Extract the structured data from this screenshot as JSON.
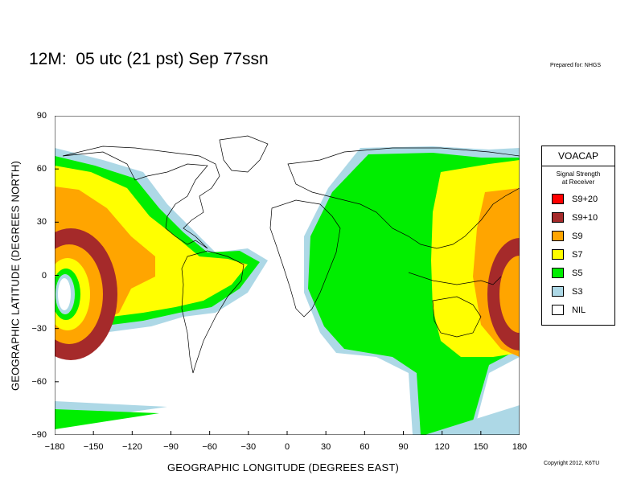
{
  "title": "12M:  05 utc (21 pst) Sep 77ssn",
  "prepared": "Prepared for: NHGS",
  "copyright": "Copyright 2012, K6TU",
  "axes": {
    "xlabel": "GEOGRAPHIC LONGITUDE (DEGREES EAST)",
    "ylabel": "GEOGRAPHIC LATITUDE (DEGREES NORTH)",
    "xticks": [
      "−180",
      "−150",
      "−120",
      "−90",
      "−60",
      "−30",
      "0",
      "30",
      "60",
      "90",
      "120",
      "150",
      "180"
    ],
    "yticks": [
      "90",
      "60",
      "30",
      "0",
      "−30",
      "−60",
      "−90"
    ],
    "xrange": [
      -180,
      180
    ],
    "yrange": [
      -90,
      90
    ]
  },
  "legend": {
    "title": "VOACAP",
    "subtitle_line1": "Signal Strength",
    "subtitle_line2": "at Receiver",
    "items": [
      {
        "label": "S9+20",
        "color": "#ff0000"
      },
      {
        "label": "S9+10",
        "color": "#a52a2a"
      },
      {
        "label": "S9",
        "color": "#ffa500"
      },
      {
        "label": "S7",
        "color": "#ffff00"
      },
      {
        "label": "S5",
        "color": "#00ee00"
      },
      {
        "label": "S3",
        "color": "#add8e6"
      },
      {
        "label": "NIL",
        "color": "#ffffff"
      }
    ]
  },
  "colors": {
    "s9_10": "#a52a2a",
    "s9": "#ffa500",
    "s7": "#ffff00",
    "s5": "#00ee00",
    "s3": "#add8e6",
    "coast": "#000000"
  }
}
